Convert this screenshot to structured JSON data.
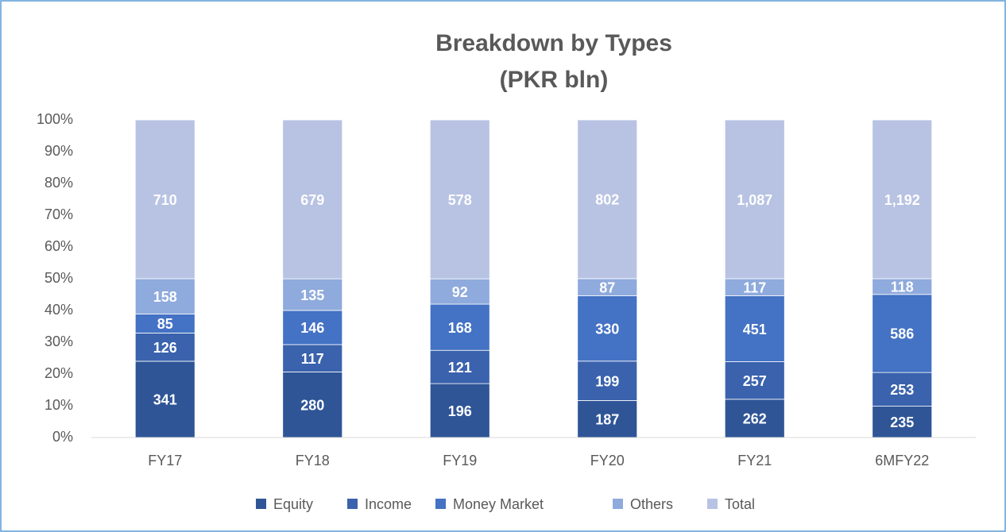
{
  "chart_data": {
    "type": "bar",
    "stacked": "percent",
    "title": [
      "Breakdown by Types",
      "(PKR bln)"
    ],
    "categories": [
      "FY17",
      "FY18",
      "FY19",
      "FY20",
      "FY21",
      "6MFY22"
    ],
    "series": [
      {
        "name": "Equity",
        "color": "#2F5597",
        "values": [
          341,
          280,
          196,
          187,
          262,
          235
        ]
      },
      {
        "name": "Income",
        "color": "#3A62AD",
        "values": [
          126,
          117,
          121,
          199,
          257,
          253
        ]
      },
      {
        "name": "Money Market",
        "color": "#4472C4",
        "values": [
          85,
          146,
          168,
          330,
          451,
          586
        ]
      },
      {
        "name": "Others",
        "color": "#8FAADC",
        "values": [
          158,
          135,
          92,
          87,
          117,
          118
        ]
      },
      {
        "name": "Total",
        "color": "#B8C3E3",
        "values": [
          710,
          679,
          578,
          802,
          1087,
          1192
        ],
        "value_labels": [
          "710",
          "679",
          "578",
          "802",
          "1,087",
          "1,192"
        ]
      }
    ],
    "ylim": [
      0,
      100
    ],
    "yticks": [
      {
        "value": 0,
        "label": "0%"
      },
      {
        "value": 10,
        "label": "10%"
      },
      {
        "value": 20,
        "label": "20%"
      },
      {
        "value": 30,
        "label": "30%"
      },
      {
        "value": 40,
        "label": "40%"
      },
      {
        "value": 50,
        "label": "50%"
      },
      {
        "value": 60,
        "label": "60%"
      },
      {
        "value": 70,
        "label": "70%"
      },
      {
        "value": 80,
        "label": "80%"
      },
      {
        "value": 90,
        "label": "90%"
      },
      {
        "value": 100,
        "label": "100%"
      }
    ],
    "grid": false,
    "legend": "bottom"
  }
}
